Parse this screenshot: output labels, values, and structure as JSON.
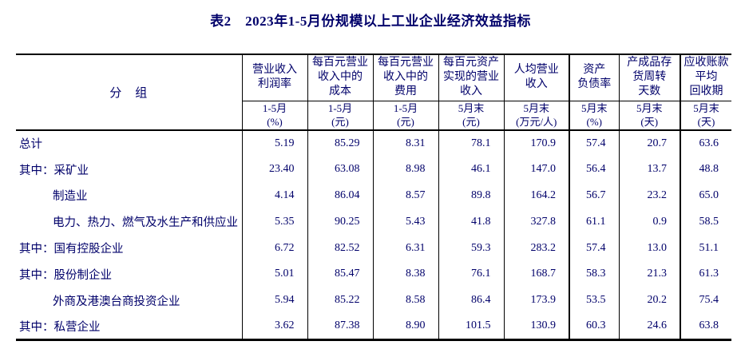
{
  "title": "表2　2023年1-5月份规模以上工业企业经济效益指标",
  "colors": {
    "text": "#00006a",
    "border": "#000000",
    "background": "#ffffff"
  },
  "table": {
    "group_header": "分　组",
    "columns": [
      {
        "label": "营业收入\n利润率",
        "sub": "1-5月\n(%)"
      },
      {
        "label": "每百元营业\n收入中的\n成本",
        "sub": "1-5月\n(元)"
      },
      {
        "label": "每百元营业\n收入中的\n费用",
        "sub": "1-5月\n(元)"
      },
      {
        "label": "每百元资产\n实现的营业\n收入",
        "sub": "5月末\n(元)"
      },
      {
        "label": "人均营业\n收入",
        "sub": "5月末\n(万元/人)"
      },
      {
        "label": "资产\n负债率",
        "sub": "5月末\n(%)"
      },
      {
        "label": "产成品存\n货周转\n天数",
        "sub": "5月末\n(天)"
      },
      {
        "label": "应收账款\n平均\n回收期",
        "sub": "5月末\n(天)"
      }
    ],
    "rows": [
      {
        "label": "总计",
        "indent": false,
        "values": [
          "5.19",
          "85.29",
          "8.31",
          "78.1",
          "170.9",
          "57.4",
          "20.7",
          "63.6"
        ]
      },
      {
        "label": "其中：采矿业",
        "indent": false,
        "values": [
          "23.40",
          "63.08",
          "8.98",
          "46.1",
          "147.0",
          "56.4",
          "13.7",
          "48.8"
        ]
      },
      {
        "label": "制造业",
        "indent": true,
        "values": [
          "4.14",
          "86.04",
          "8.57",
          "89.8",
          "164.2",
          "56.7",
          "23.2",
          "65.0"
        ]
      },
      {
        "label": "电力、热力、燃气及水生产和供应业",
        "indent": true,
        "values": [
          "5.35",
          "90.25",
          "5.43",
          "41.8",
          "327.8",
          "61.1",
          "0.9",
          "58.5"
        ]
      },
      {
        "label": "其中：国有控股企业",
        "indent": false,
        "values": [
          "6.72",
          "82.52",
          "6.31",
          "59.3",
          "283.2",
          "57.4",
          "13.0",
          "51.1"
        ]
      },
      {
        "label": "其中：股份制企业",
        "indent": false,
        "values": [
          "5.01",
          "85.47",
          "8.38",
          "76.1",
          "168.7",
          "58.3",
          "21.3",
          "61.3"
        ]
      },
      {
        "label": "外商及港澳台商投资企业",
        "indent": true,
        "values": [
          "5.94",
          "85.22",
          "8.58",
          "86.4",
          "173.9",
          "53.5",
          "20.2",
          "75.4"
        ]
      },
      {
        "label": "其中：私营企业",
        "indent": false,
        "values": [
          "3.62",
          "87.38",
          "8.90",
          "101.5",
          "130.9",
          "60.3",
          "24.6",
          "63.8"
        ]
      }
    ]
  }
}
